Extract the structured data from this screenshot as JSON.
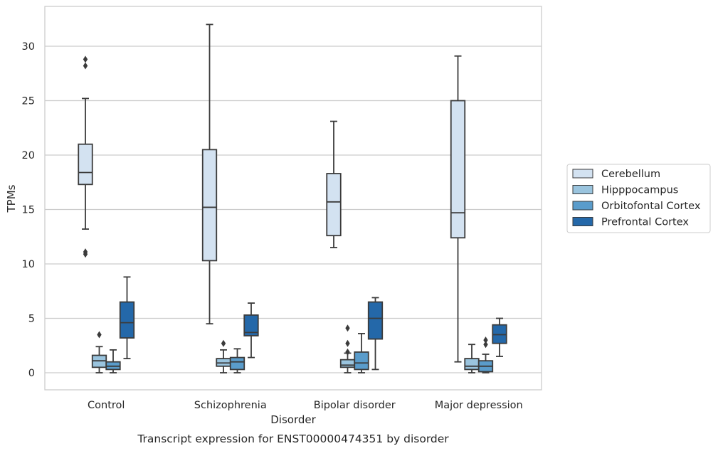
{
  "chart_data": {
    "type": "box",
    "caption": "Transcript expression for ENST00000474351 by disorder",
    "xlabel": "Disorder",
    "ylabel": "TPMs",
    "ylim": [
      -1.5,
      33.5
    ],
    "yticks": [
      0,
      5,
      10,
      15,
      20,
      25,
      30
    ],
    "grid": true,
    "legend_position": "right",
    "categories": [
      "Control",
      "Schizophrenia",
      "Bipolar disorder",
      "Major depression"
    ],
    "series": [
      {
        "name": "Cerebellum",
        "color": "#d3e2f1",
        "boxes": [
          {
            "whislo": 13.2,
            "q1": 17.3,
            "med": 18.4,
            "q3": 21.0,
            "whishi": 25.2,
            "fliers": [
              28.8,
              28.2,
              11.1,
              10.9
            ]
          },
          {
            "whislo": 4.5,
            "q1": 10.3,
            "med": 15.2,
            "q3": 20.5,
            "whishi": 32.0,
            "fliers": []
          },
          {
            "whislo": 11.5,
            "q1": 12.6,
            "med": 15.7,
            "q3": 18.3,
            "whishi": 23.1,
            "fliers": []
          },
          {
            "whislo": 1.0,
            "q1": 12.4,
            "med": 14.7,
            "q3": 25.0,
            "whishi": 29.1,
            "fliers": []
          }
        ]
      },
      {
        "name": "Hipppocampus",
        "color": "#9ac4de",
        "boxes": [
          {
            "whislo": 0.0,
            "q1": 0.5,
            "med": 1.1,
            "q3": 1.6,
            "whishi": 2.4,
            "fliers": [
              3.5
            ]
          },
          {
            "whislo": 0.0,
            "q1": 0.6,
            "med": 0.9,
            "q3": 1.3,
            "whishi": 2.1,
            "fliers": [
              2.7
            ]
          },
          {
            "whislo": 0.0,
            "q1": 0.5,
            "med": 0.7,
            "q3": 1.2,
            "whishi": 1.8,
            "fliers": [
              4.1,
              1.9,
              2.7
            ]
          },
          {
            "whislo": 0.0,
            "q1": 0.3,
            "med": 0.6,
            "q3": 1.3,
            "whishi": 2.6,
            "fliers": []
          }
        ]
      },
      {
        "name": "Orbitofontal Cortex",
        "color": "#5a9ccb",
        "boxes": [
          {
            "whislo": 0.0,
            "q1": 0.3,
            "med": 0.6,
            "q3": 1.0,
            "whishi": 2.1,
            "fliers": []
          },
          {
            "whislo": 0.0,
            "q1": 0.3,
            "med": 1.0,
            "q3": 1.4,
            "whishi": 2.2,
            "fliers": []
          },
          {
            "whislo": 0.0,
            "q1": 0.3,
            "med": 0.9,
            "q3": 1.9,
            "whishi": 3.6,
            "fliers": []
          },
          {
            "whislo": 0.0,
            "q1": 0.1,
            "med": 0.6,
            "q3": 1.1,
            "whishi": 1.7,
            "fliers": [
              3.0,
              2.6
            ]
          }
        ]
      },
      {
        "name": "Prefrontal Cortex",
        "color": "#2468a9",
        "boxes": [
          {
            "whislo": 1.3,
            "q1": 3.2,
            "med": 4.6,
            "q3": 6.5,
            "whishi": 8.8,
            "fliers": []
          },
          {
            "whislo": 1.4,
            "q1": 3.4,
            "med": 3.7,
            "q3": 5.3,
            "whishi": 6.4,
            "fliers": []
          },
          {
            "whislo": 0.3,
            "q1": 3.1,
            "med": 5.0,
            "q3": 6.5,
            "whishi": 6.9,
            "fliers": []
          },
          {
            "whislo": 1.5,
            "q1": 2.7,
            "med": 3.5,
            "q3": 4.4,
            "whishi": 5.0,
            "fliers": []
          }
        ]
      }
    ]
  }
}
